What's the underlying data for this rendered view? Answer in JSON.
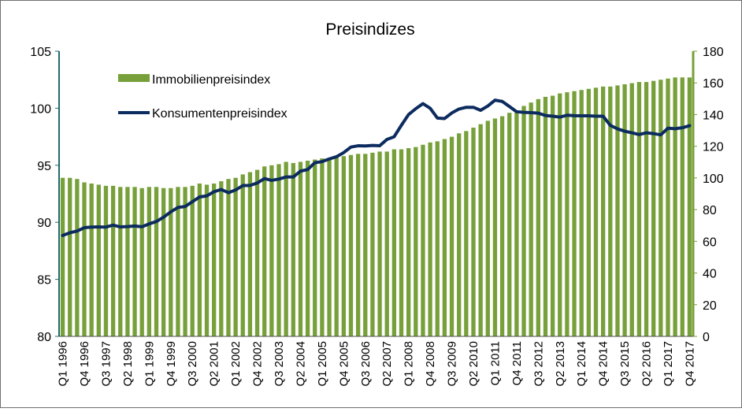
{
  "chart_data": {
    "type": "bar",
    "title": "Preisindizes",
    "xlabel": "",
    "ylabel": "",
    "y_left": {
      "lim": [
        80,
        105
      ],
      "ticks": [
        80,
        85,
        90,
        95,
        100,
        105
      ]
    },
    "y_right": {
      "lim": [
        0,
        180
      ],
      "ticks": [
        0,
        20,
        40,
        60,
        80,
        100,
        120,
        140,
        160,
        180
      ]
    },
    "grid": false,
    "legend": "top-left inside plot",
    "categories": [
      "Q1 1996",
      "Q2 1996",
      "Q3 1996",
      "Q4 1996",
      "Q1 1997",
      "Q2 1997",
      "Q3 1997",
      "Q4 1997",
      "Q1 1998",
      "Q2 1998",
      "Q3 1998",
      "Q4 1998",
      "Q1 1999",
      "Q2 1999",
      "Q3 1999",
      "Q4 1999",
      "Q1 2000",
      "Q2 2000",
      "Q3 2000",
      "Q4 2000",
      "Q1 2001",
      "Q2 2001",
      "Q3 2001",
      "Q4 2001",
      "Q1 2002",
      "Q2 2002",
      "Q3 2002",
      "Q4 2002",
      "Q1 2003",
      "Q2 2003",
      "Q3 2003",
      "Q4 2003",
      "Q1 2004",
      "Q2 2004",
      "Q3 2004",
      "Q4 2004",
      "Q1 2005",
      "Q2 2005",
      "Q3 2005",
      "Q4 2005",
      "Q1 2006",
      "Q2 2006",
      "Q3 2006",
      "Q4 2006",
      "Q1 2007",
      "Q2 2007",
      "Q3 2007",
      "Q4 2007",
      "Q1 2008",
      "Q2 2008",
      "Q3 2008",
      "Q4 2008",
      "Q1 2009",
      "Q2 2009",
      "Q3 2009",
      "Q4 2009",
      "Q1 2010",
      "Q2 2010",
      "Q3 2010",
      "Q4 2010",
      "Q1 2011",
      "Q2 2011",
      "Q3 2011",
      "Q4 2011",
      "Q1 2012",
      "Q2 2012",
      "Q3 2012",
      "Q4 2012",
      "Q1 2013",
      "Q2 2013",
      "Q3 2013",
      "Q4 2013",
      "Q1 2014",
      "Q2 2014",
      "Q3 2014",
      "Q4 2014",
      "Q1 2015",
      "Q2 2015",
      "Q3 2015",
      "Q4 2015",
      "Q1 2016",
      "Q2 2016",
      "Q3 2016",
      "Q4 2016",
      "Q1 2017",
      "Q2 2017",
      "Q3 2017",
      "Q4 2017"
    ],
    "category_labels_shown": [
      "Q1 1996",
      "Q4 1996",
      "Q3 1997",
      "Q2 1998",
      "Q1 1999",
      "Q4 1999",
      "Q3 2000",
      "Q2 2001",
      "Q1 2002",
      "Q4 2002",
      "Q3 2003",
      "Q2 2004",
      "Q1 2005",
      "Q4 2005",
      "Q3 2006",
      "Q2 2007",
      "Q1 2008",
      "Q4 2008",
      "Q3 2009",
      "Q2 2010",
      "Q1 2011",
      "Q4 2011",
      "Q3 2012",
      "Q2 2013",
      "Q1 2014",
      "Q4 2014",
      "Q3 2015",
      "Q2 2016",
      "Q1 2017",
      "Q4 2017"
    ],
    "series": [
      {
        "name": "Immobilienpreisindex",
        "kind": "bar",
        "axis": "left",
        "color": "#77a03a",
        "values": [
          93.9,
          93.9,
          93.8,
          93.5,
          93.4,
          93.3,
          93.2,
          93.2,
          93.1,
          93.1,
          93.1,
          93.0,
          93.1,
          93.1,
          93.0,
          93.0,
          93.1,
          93.1,
          93.2,
          93.4,
          93.3,
          93.4,
          93.6,
          93.8,
          93.9,
          94.2,
          94.4,
          94.6,
          94.9,
          95.0,
          95.1,
          95.3,
          95.2,
          95.3,
          95.4,
          95.5,
          95.6,
          95.5,
          95.7,
          95.8,
          95.9,
          96.0,
          96.0,
          96.1,
          96.2,
          96.2,
          96.4,
          96.4,
          96.5,
          96.6,
          96.8,
          97.0,
          97.1,
          97.3,
          97.5,
          97.8,
          98.0,
          98.3,
          98.6,
          98.9,
          99.1,
          99.3,
          99.6,
          99.8,
          100.2,
          100.5,
          100.8,
          101.0,
          101.1,
          101.3,
          101.4,
          101.5,
          101.6,
          101.7,
          101.8,
          101.9,
          101.9,
          102.0,
          102.1,
          102.2,
          102.3,
          102.3,
          102.4,
          102.5,
          102.6,
          102.7,
          102.7,
          102.7
        ]
      },
      {
        "name": "Konsumentenpreisindex",
        "kind": "line",
        "axis": "right",
        "color": "#0c2b5e",
        "values": [
          63.7,
          65.4,
          66.5,
          68.6,
          69.0,
          69.1,
          69.0,
          70.2,
          69.1,
          69.3,
          69.7,
          69.2,
          71.0,
          72.5,
          75.2,
          78.6,
          81.4,
          82.0,
          85.0,
          88.0,
          88.7,
          91.3,
          92.7,
          90.7,
          92.4,
          95.2,
          95.3,
          96.8,
          99.6,
          98.5,
          99.3,
          100.6,
          100.6,
          104.3,
          105.3,
          109.6,
          110.3,
          112.0,
          113.4,
          116.0,
          119.5,
          120.3,
          120.2,
          120.5,
          120.3,
          124.3,
          126.0,
          133.2,
          140.0,
          143.7,
          146.9,
          144.0,
          137.8,
          137.5,
          141.0,
          143.5,
          144.6,
          144.6,
          142.7,
          145.4,
          149.1,
          148.3,
          145.1,
          141.8,
          141.4,
          141.2,
          140.9,
          139.4,
          139.0,
          138.4,
          139.6,
          139.3,
          139.2,
          139.2,
          139.0,
          139.0,
          133.2,
          131.0,
          129.5,
          128.5,
          127.4,
          128.5,
          128.0,
          127.2,
          131.4,
          131.1,
          131.7,
          133.0
        ]
      }
    ]
  }
}
